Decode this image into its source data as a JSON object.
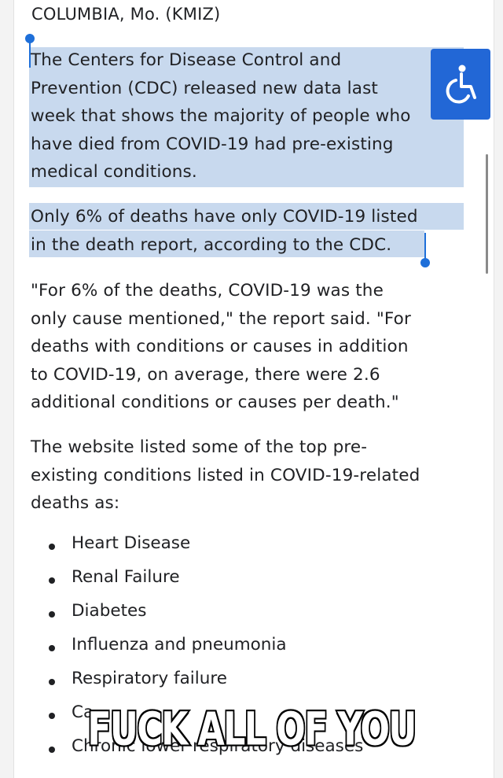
{
  "article": {
    "dateline": "COLUMBIA, Mo. (KMIZ)",
    "para1_lines": [
      "The Centers for Disease Control and",
      "Prevention (CDC) released new data last",
      "week that shows the majority of people who",
      "have died from COVID-19 had pre-existing",
      "medical conditions."
    ],
    "para2_lines": [
      "Only 6% of deaths have only COVID-19 listed",
      "in the death report, according to the CDC."
    ],
    "para3_lines": [
      "\"For 6% of the deaths, COVID-19 was the",
      "only cause mentioned,\" the report said. \"For",
      "deaths with conditions or causes in addition",
      "to COVID-19, on average, there were 2.6",
      "additional conditions or causes per death.\""
    ],
    "para4_lines": [
      "The website listed some of the top pre-",
      "existing conditions listed in COVID-19-related",
      "deaths as:"
    ],
    "conditions": [
      "Heart Disease",
      "Renal Failure",
      "Diabetes",
      "Influenza and pneumonia",
      "Respiratory failure",
      "Ca",
      "Chronic lower respiratory diseases"
    ]
  },
  "overlay": {
    "meme_caption": "FUCK ALL OF YOU"
  },
  "icons": {
    "accessibility": "accessibility-icon"
  },
  "colors": {
    "selection": "#c8d9ee",
    "handle": "#1e6fd9",
    "accessibility_bg": "#2267d6"
  }
}
